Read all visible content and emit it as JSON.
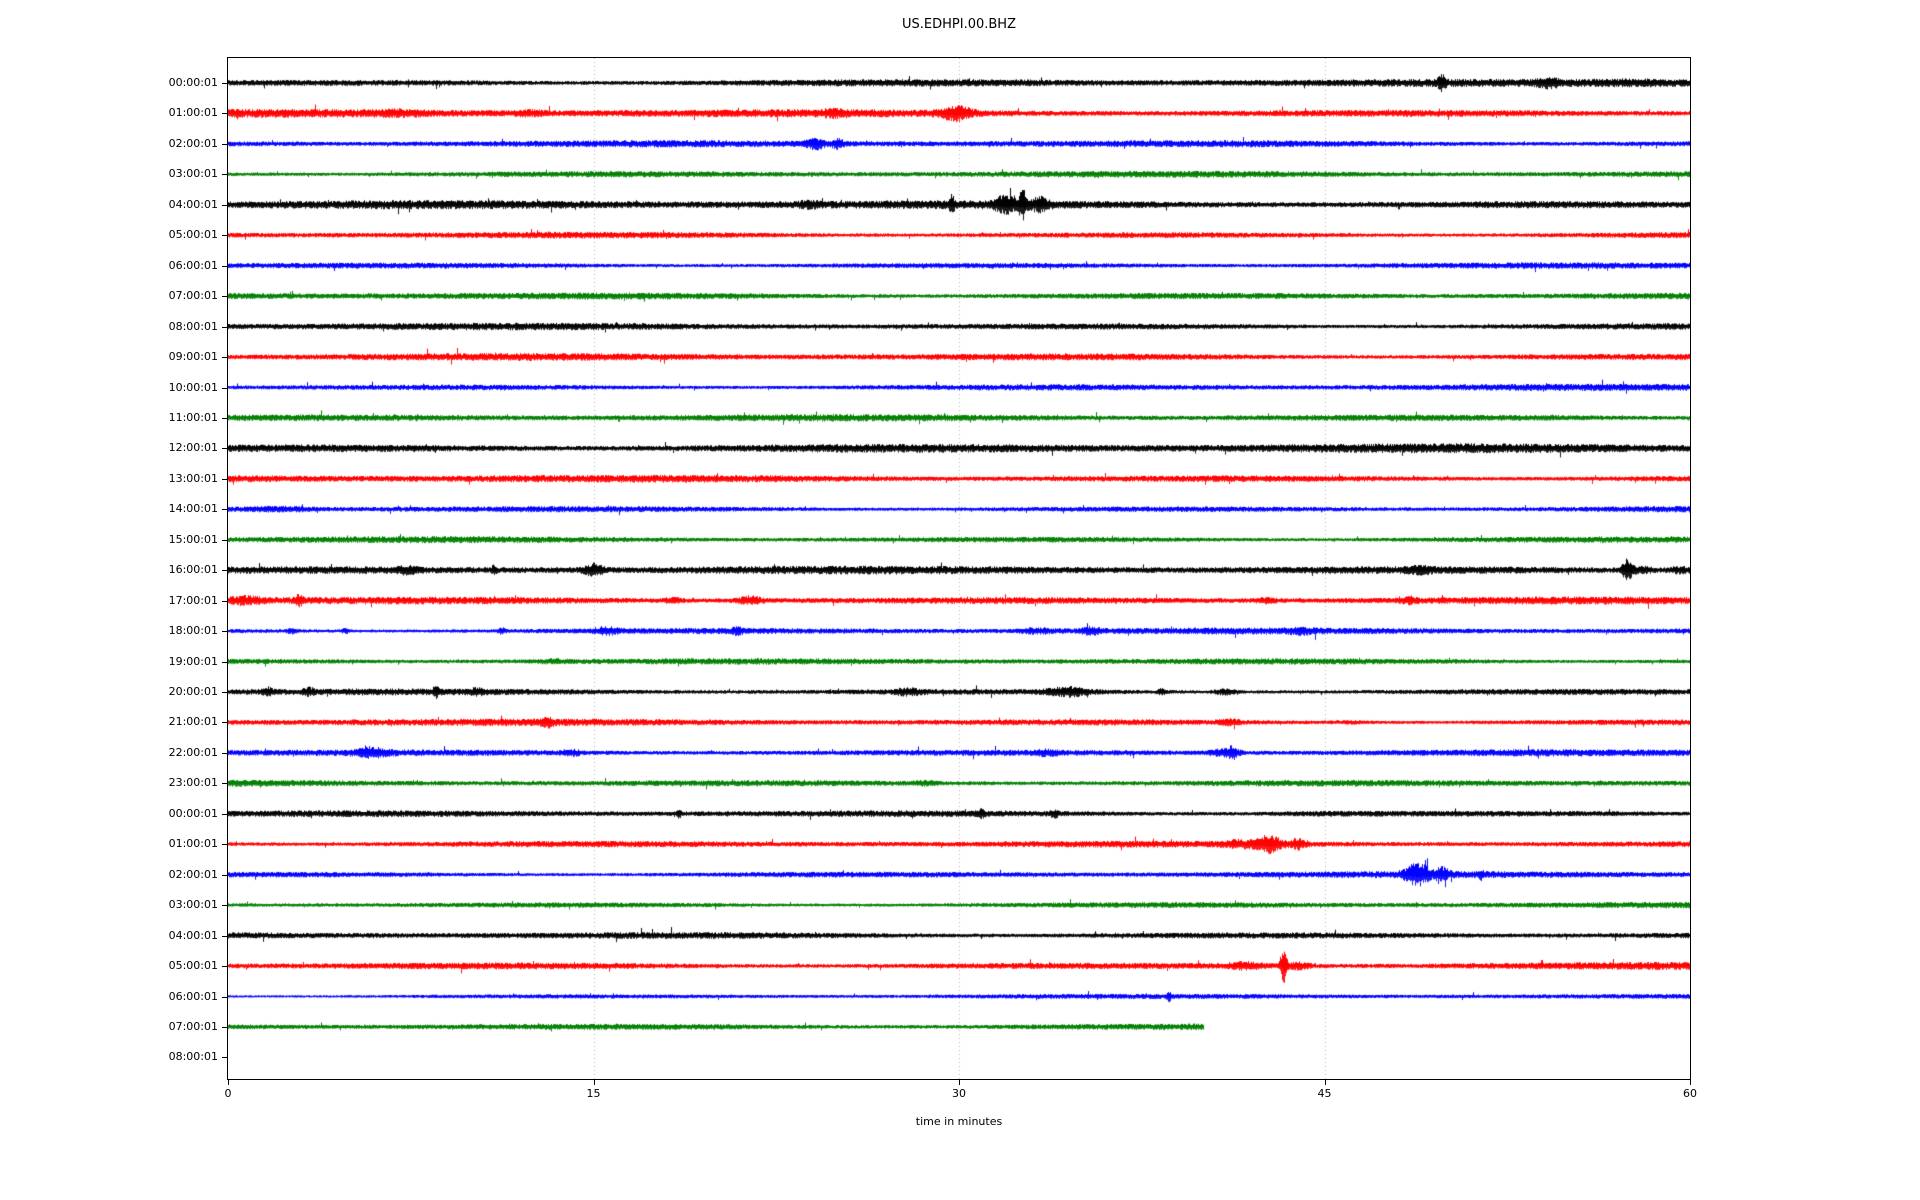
{
  "chart_data": {
    "type": "line",
    "subtype": "helicorder-dayplot",
    "title": "US.EDHPI.00.BHZ",
    "xlabel": "time in minutes",
    "x_ticks": [
      0,
      15,
      30,
      45,
      60
    ],
    "x_range": [
      0,
      60
    ],
    "minutes_per_row": 60,
    "grid": {
      "vertical_gridline_minutes": [
        15,
        30,
        45
      ],
      "style": "dotted",
      "color": "#b0b0b0"
    },
    "legend": "none",
    "background": "#ffffff",
    "axis_color": "#000000",
    "color_cycle": [
      "#000000",
      "#ff0000",
      "#0000ff",
      "#008000"
    ],
    "rows": [
      {
        "label": "00:00:01",
        "color": "#000000",
        "amp": 3.4,
        "end_min": 60,
        "events": [
          [
            49.8,
            1.6,
            0.1
          ],
          [
            54.2,
            0.8,
            0.3
          ],
          [
            58.3,
            0.5,
            1.8
          ]
        ]
      },
      {
        "label": "01:00:01",
        "color": "#ff0000",
        "amp": 3.6,
        "end_min": 60,
        "events": [
          [
            7.0,
            0.35,
            0.6
          ],
          [
            12.4,
            0.5,
            0.4
          ],
          [
            24.8,
            0.4,
            0.3
          ],
          [
            29.9,
            1.6,
            0.45
          ]
        ]
      },
      {
        "label": "02:00:01",
        "color": "#0000ff",
        "amp": 3.2,
        "end_min": 60,
        "events": [
          [
            24.1,
            1.4,
            0.25
          ],
          [
            25.0,
            1.2,
            0.18
          ]
        ]
      },
      {
        "label": "03:00:01",
        "color": "#008000",
        "amp": 3.2,
        "end_min": 60,
        "events": []
      },
      {
        "label": "04:00:01",
        "color": "#000000",
        "amp": 3.8,
        "end_min": 60,
        "events": [
          [
            23.8,
            0.5,
            0.3
          ],
          [
            29.7,
            1.6,
            0.07
          ],
          [
            31.9,
            1.5,
            0.3
          ],
          [
            32.6,
            3.2,
            0.1
          ],
          [
            33.3,
            1.2,
            0.25
          ]
        ]
      },
      {
        "label": "05:00:01",
        "color": "#ff0000",
        "amp": 3.2,
        "end_min": 60,
        "events": []
      },
      {
        "label": "06:00:01",
        "color": "#0000ff",
        "amp": 3.0,
        "end_min": 60,
        "events": []
      },
      {
        "label": "07:00:01",
        "color": "#008000",
        "amp": 3.4,
        "end_min": 60,
        "events": []
      },
      {
        "label": "08:00:01",
        "color": "#000000",
        "amp": 3.4,
        "end_min": 60,
        "events": []
      },
      {
        "label": "09:00:01",
        "color": "#ff0000",
        "amp": 3.6,
        "end_min": 60,
        "events": []
      },
      {
        "label": "10:00:01",
        "color": "#0000ff",
        "amp": 3.2,
        "end_min": 60,
        "events": []
      },
      {
        "label": "11:00:01",
        "color": "#008000",
        "amp": 3.2,
        "end_min": 60,
        "events": []
      },
      {
        "label": "12:00:01",
        "color": "#000000",
        "amp": 4.0,
        "end_min": 60,
        "events": []
      },
      {
        "label": "13:00:01",
        "color": "#ff0000",
        "amp": 3.4,
        "end_min": 60,
        "events": []
      },
      {
        "label": "14:00:01",
        "color": "#0000ff",
        "amp": 3.2,
        "end_min": 60,
        "events": [
          [
            2.2,
            0.6,
            0.8
          ]
        ]
      },
      {
        "label": "15:00:01",
        "color": "#008000",
        "amp": 3.2,
        "end_min": 60,
        "events": []
      },
      {
        "label": "16:00:01",
        "color": "#000000",
        "amp": 3.6,
        "end_min": 60,
        "events": [
          [
            7.3,
            0.6,
            0.3
          ],
          [
            10.9,
            1.1,
            0.08
          ],
          [
            15.0,
            1.7,
            0.3
          ],
          [
            48.9,
            0.5,
            0.3
          ],
          [
            57.4,
            4.0,
            0.13
          ],
          [
            58.0,
            1.0,
            0.4
          ],
          [
            59.6,
            1.1,
            0.4
          ]
        ]
      },
      {
        "label": "17:00:01",
        "color": "#ff0000",
        "amp": 3.4,
        "end_min": 60,
        "events": [
          [
            0.6,
            0.9,
            0.5
          ],
          [
            2.9,
            1.2,
            0.12
          ],
          [
            18.3,
            0.8,
            0.25
          ],
          [
            21.4,
            1.5,
            0.35
          ],
          [
            42.6,
            0.6,
            0.3
          ],
          [
            48.5,
            0.7,
            0.2
          ]
        ]
      },
      {
        "label": "18:00:01",
        "color": "#0000ff",
        "amp": 3.0,
        "end_min": 60,
        "events": [
          [
            2.6,
            1.0,
            0.15
          ],
          [
            4.8,
            1.2,
            0.1
          ],
          [
            11.2,
            1.2,
            0.12
          ],
          [
            15.5,
            0.9,
            0.35
          ],
          [
            20.9,
            1.0,
            0.15
          ],
          [
            33.2,
            0.7,
            0.5
          ],
          [
            35.4,
            0.9,
            0.3
          ],
          [
            44.0,
            0.6,
            0.3
          ]
        ]
      },
      {
        "label": "19:00:01",
        "color": "#008000",
        "amp": 3.0,
        "end_min": 60,
        "events": [
          [
            13.3,
            0.5,
            0.4
          ]
        ]
      },
      {
        "label": "20:00:01",
        "color": "#000000",
        "amp": 3.2,
        "end_min": 60,
        "events": [
          [
            1.6,
            1.0,
            0.15
          ],
          [
            3.3,
            0.8,
            0.15
          ],
          [
            8.5,
            1.3,
            0.08
          ],
          [
            10.2,
            0.6,
            0.2
          ],
          [
            27.9,
            1.0,
            0.4
          ],
          [
            34.5,
            1.4,
            0.6
          ],
          [
            38.3,
            1.1,
            0.12
          ],
          [
            40.9,
            1.4,
            0.3
          ]
        ]
      },
      {
        "label": "21:00:01",
        "color": "#ff0000",
        "amp": 3.2,
        "end_min": 60,
        "events": [
          [
            13.1,
            0.8,
            0.15
          ],
          [
            41.1,
            0.8,
            0.3
          ],
          [
            46.0,
            0.4,
            0.5
          ]
        ]
      },
      {
        "label": "22:00:01",
        "color": "#0000ff",
        "amp": 3.0,
        "end_min": 60,
        "events": [
          [
            5.9,
            1.1,
            0.4
          ],
          [
            14.1,
            0.8,
            0.25
          ],
          [
            33.6,
            0.6,
            0.3
          ],
          [
            40.6,
            1.0,
            0.3
          ],
          [
            41.2,
            2.6,
            0.2
          ]
        ]
      },
      {
        "label": "23:00:01",
        "color": "#008000",
        "amp": 3.0,
        "end_min": 60,
        "events": [
          [
            28.6,
            0.6,
            0.3
          ]
        ]
      },
      {
        "label": "00:00:01",
        "color": "#000000",
        "amp": 3.2,
        "end_min": 60,
        "events": [
          [
            18.5,
            1.5,
            0.06
          ],
          [
            30.9,
            0.8,
            0.12
          ],
          [
            33.9,
            1.0,
            0.12
          ],
          [
            45.0,
            0.4,
            2.0
          ]
        ]
      },
      {
        "label": "01:00:01",
        "color": "#ff0000",
        "amp": 3.2,
        "end_min": 60,
        "events": [
          [
            41.5,
            0.8,
            0.4
          ],
          [
            42.7,
            2.6,
            0.35
          ],
          [
            43.9,
            1.4,
            0.25
          ]
        ]
      },
      {
        "label": "02:00:01",
        "color": "#0000ff",
        "amp": 3.0,
        "end_min": 60,
        "events": [
          [
            48.8,
            2.6,
            0.35
          ],
          [
            49.8,
            1.4,
            0.2
          ],
          [
            51.4,
            1.0,
            0.07
          ]
        ]
      },
      {
        "label": "03:00:01",
        "color": "#008000",
        "amp": 3.0,
        "end_min": 60,
        "events": []
      },
      {
        "label": "04:00:01",
        "color": "#000000",
        "amp": 3.2,
        "end_min": 60,
        "events": []
      },
      {
        "label": "05:00:01",
        "color": "#ff0000",
        "amp": 3.4,
        "end_min": 60,
        "events": [
          [
            41.8,
            1.0,
            0.5
          ],
          [
            43.3,
            6.5,
            0.1
          ],
          [
            43.9,
            1.2,
            0.3
          ]
        ]
      },
      {
        "label": "06:00:01",
        "color": "#0000ff",
        "amp": 2.2,
        "end_min": 60,
        "events": [
          [
            38.6,
            1.3,
            0.06
          ]
        ]
      },
      {
        "label": "07:00:01",
        "color": "#008000",
        "amp": 3.0,
        "end_min": 40,
        "events": []
      },
      {
        "label": "08:00:01",
        "color": "#000000",
        "amp": 0,
        "end_min": 0,
        "events": []
      }
    ]
  }
}
